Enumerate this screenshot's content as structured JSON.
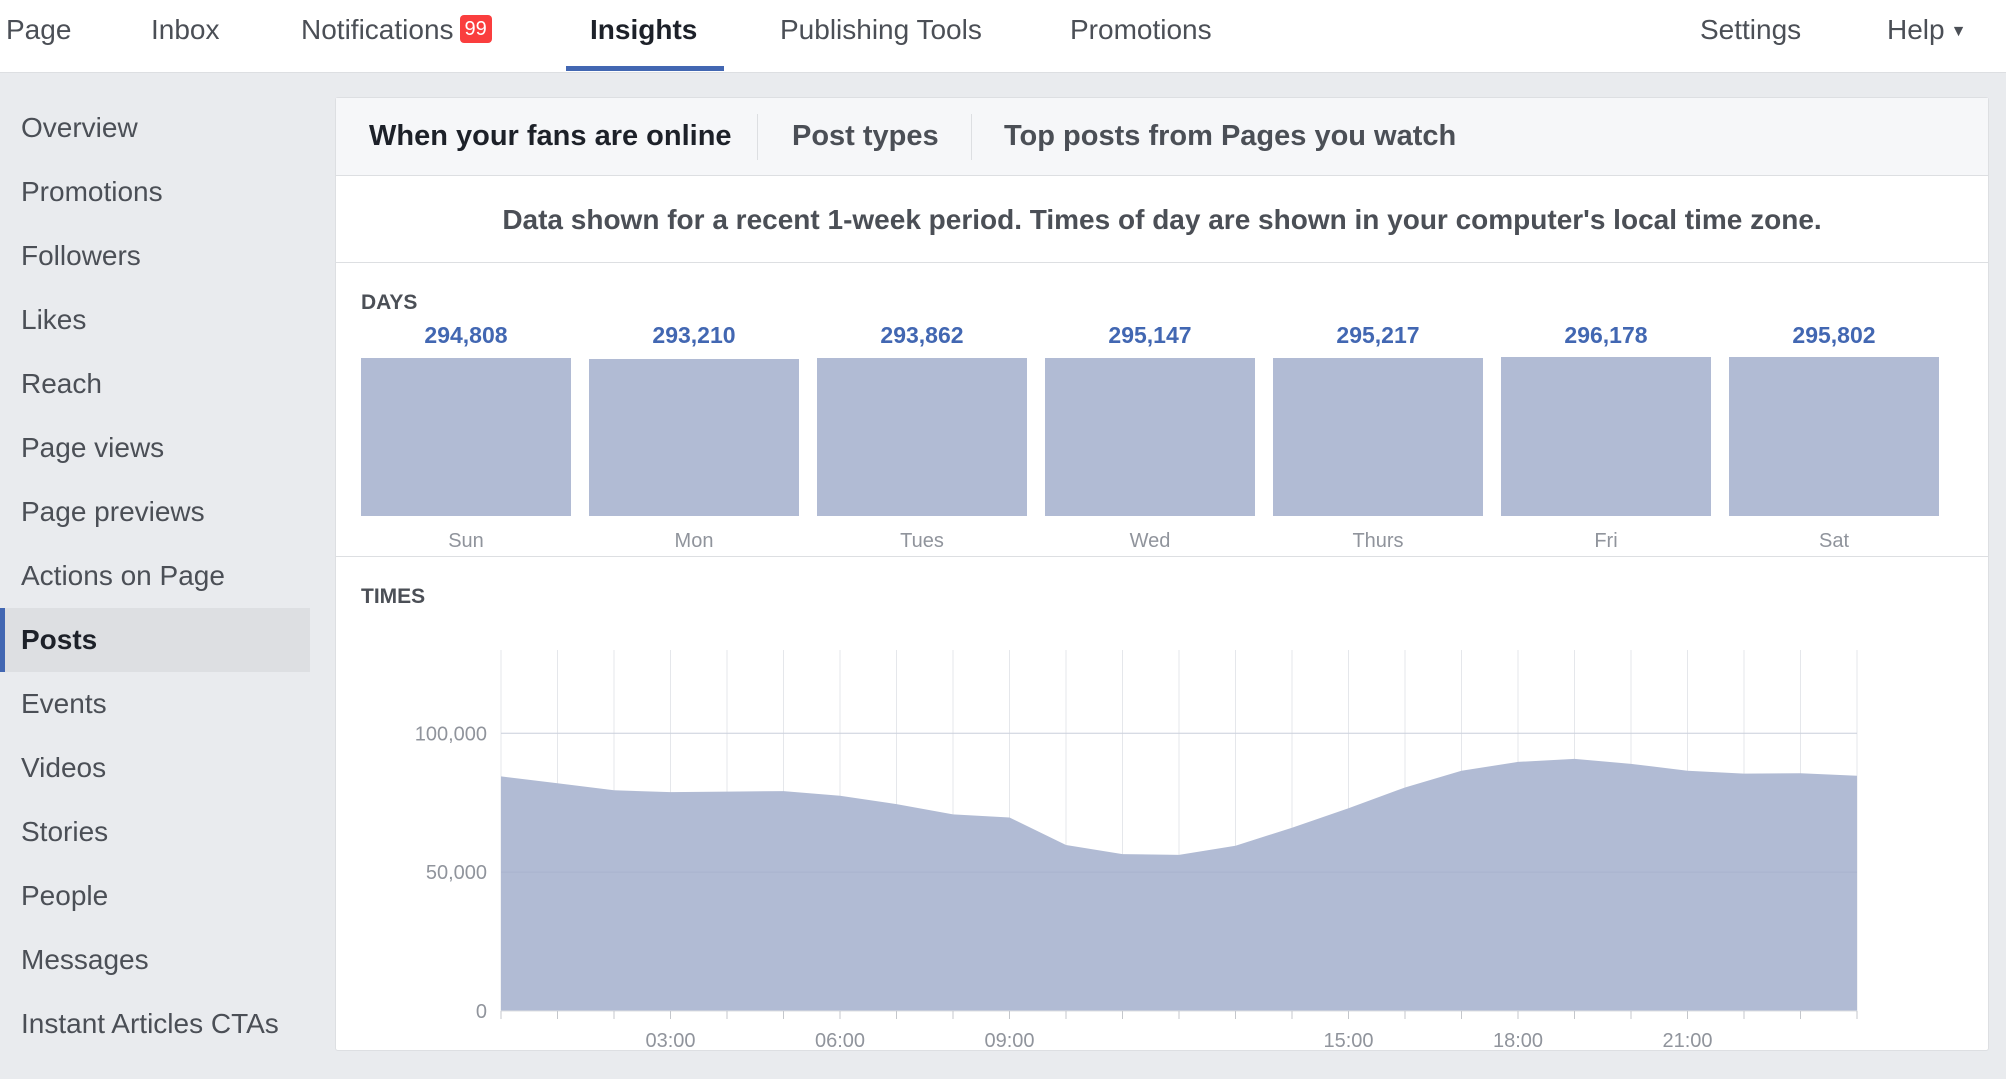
{
  "topnav": {
    "items": [
      {
        "label": "Page"
      },
      {
        "label": "Inbox"
      },
      {
        "label": "Notifications",
        "badge": "99"
      },
      {
        "label": "Insights"
      },
      {
        "label": "Publishing Tools"
      },
      {
        "label": "Promotions"
      },
      {
        "label": "Settings"
      },
      {
        "label": "Help"
      }
    ],
    "active": "Insights",
    "badge_color": "#fa3e3e",
    "accent_color": "#4267b2"
  },
  "sidebar": {
    "items": [
      {
        "label": "Overview"
      },
      {
        "label": "Promotions"
      },
      {
        "label": "Followers"
      },
      {
        "label": "Likes"
      },
      {
        "label": "Reach"
      },
      {
        "label": "Page views"
      },
      {
        "label": "Page previews"
      },
      {
        "label": "Actions on Page"
      },
      {
        "label": "Posts"
      },
      {
        "label": "Events"
      },
      {
        "label": "Videos"
      },
      {
        "label": "Stories"
      },
      {
        "label": "People"
      },
      {
        "label": "Messages"
      },
      {
        "label": "Instant Articles CTAs"
      }
    ],
    "active": "Posts"
  },
  "main": {
    "tabs": [
      {
        "label": "When your fans are online"
      },
      {
        "label": "Post types"
      },
      {
        "label": "Top posts from Pages you watch"
      }
    ],
    "active_tab": "When your fans are online",
    "info_text": "Data shown for a recent 1-week period. Times of day are shown in your computer's local time zone.",
    "days_label": "DAYS",
    "times_label": "TIMES"
  },
  "chart_data": [
    {
      "type": "bar",
      "title": "DAYS",
      "categories": [
        "Sun",
        "Mon",
        "Tues",
        "Wed",
        "Thurs",
        "Fri",
        "Sat"
      ],
      "values": [
        294808,
        293210,
        293862,
        295147,
        295217,
        296178,
        295802
      ],
      "value_labels": [
        "294,808",
        "293,210",
        "293,862",
        "295,147",
        "295,217",
        "296,178",
        "295,802"
      ],
      "bar_color": "#b1bbd4",
      "value_label_color": "#4267b2"
    },
    {
      "type": "area",
      "title": "TIMES",
      "x": [
        0,
        1,
        2,
        3,
        4,
        5,
        6,
        7,
        8,
        9,
        10,
        11,
        12,
        13,
        14,
        15,
        16,
        17,
        18,
        19,
        20,
        21,
        22,
        23,
        24
      ],
      "values": [
        84500,
        82000,
        79500,
        78800,
        79000,
        79200,
        77500,
        74500,
        70800,
        69700,
        59800,
        56500,
        56200,
        59500,
        66000,
        73000,
        80500,
        86500,
        89700,
        90800,
        89000,
        86500,
        85500,
        85600,
        84700
      ],
      "xticks": [
        3,
        6,
        9,
        15,
        18,
        21
      ],
      "xtick_labels": [
        "03:00",
        "06:00",
        "09:00",
        "15:00",
        "18:00",
        "21:00"
      ],
      "yticks": [
        0,
        50000,
        100000
      ],
      "ytick_labels": [
        "0",
        "50,000",
        "100,000"
      ],
      "ylim": [
        0,
        130000
      ],
      "xlim": [
        0,
        24
      ],
      "grid": true,
      "fill_color": "#b1bbd4"
    }
  ]
}
